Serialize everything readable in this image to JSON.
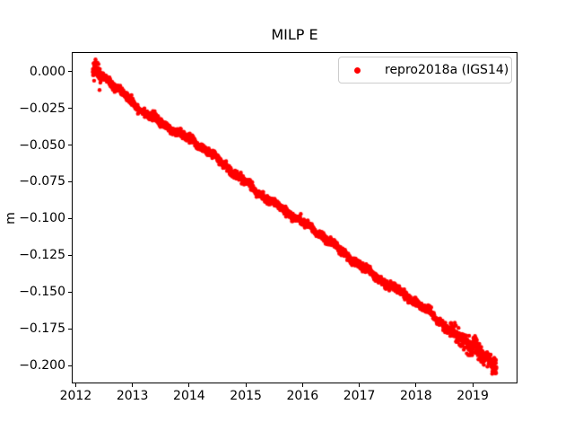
{
  "chart_data": {
    "type": "scatter",
    "title": "MILP E",
    "xlabel": "",
    "ylabel": "m",
    "grid": false,
    "legend_position": "upper right",
    "xlim": [
      2011.93,
      2019.79
    ],
    "ylim": [
      -0.2122,
      0.0133
    ],
    "x_ticks": [
      2012,
      2013,
      2014,
      2015,
      2016,
      2017,
      2018,
      2019
    ],
    "x_tick_labels": [
      "2012",
      "2013",
      "2014",
      "2015",
      "2016",
      "2017",
      "2018",
      "2019"
    ],
    "y_ticks": [
      0.0,
      -0.025,
      -0.05,
      -0.075,
      -0.1,
      -0.125,
      -0.15,
      -0.175,
      -0.2
    ],
    "y_tick_labels": [
      "0.000",
      "−0.025",
      "−0.050",
      "−0.075",
      "−0.100",
      "−0.125",
      "−0.150",
      "−0.175",
      "−0.200"
    ],
    "series": [
      {
        "name": "repro2018a (IGS14)",
        "color": "#ff0000",
        "marker": "point",
        "marker_radius_px": 2.2,
        "x_start": 2012.3,
        "x_end": 2019.42,
        "cadence_days": 1,
        "trend_anchors": [
          [
            2012.3,
            0.0005
          ],
          [
            2012.6,
            -0.0075
          ],
          [
            2013.0,
            -0.0205
          ],
          [
            2013.5,
            -0.034
          ],
          [
            2014.0,
            -0.0465
          ],
          [
            2014.5,
            -0.0605
          ],
          [
            2015.0,
            -0.0745
          ],
          [
            2015.5,
            -0.089
          ],
          [
            2016.0,
            -0.1035
          ],
          [
            2016.5,
            -0.117
          ],
          [
            2017.0,
            -0.13
          ],
          [
            2017.5,
            -0.1445
          ],
          [
            2018.0,
            -0.158
          ],
          [
            2018.4,
            -0.17
          ],
          [
            2018.7,
            -0.179
          ],
          [
            2018.95,
            -0.1855
          ],
          [
            2019.05,
            -0.184
          ],
          [
            2019.15,
            -0.192
          ],
          [
            2019.3,
            -0.197
          ],
          [
            2019.42,
            -0.2
          ]
        ],
        "noise_sigma_m": 0.0013,
        "wander": [
          {
            "amp": 0.0012,
            "period": 1.9,
            "phase": 0.7
          },
          {
            "amp": 0.0009,
            "period": 0.53,
            "phase": 2.1
          },
          {
            "amp": 0.0007,
            "period": 0.21,
            "phase": 4.0
          }
        ],
        "high_scatter_regions": [
          {
            "from": 2012.3,
            "to": 2012.45,
            "sigma": 0.0026
          },
          {
            "from": 2018.6,
            "to": 2019.45,
            "sigma": 0.0028
          }
        ],
        "outliers": [
          [
            2012.42,
            -0.0125
          ]
        ],
        "rng_seed": 42
      }
    ]
  },
  "legend": {
    "label": "repro2018a (IGS14)",
    "swatch_color": "#ff0000"
  }
}
